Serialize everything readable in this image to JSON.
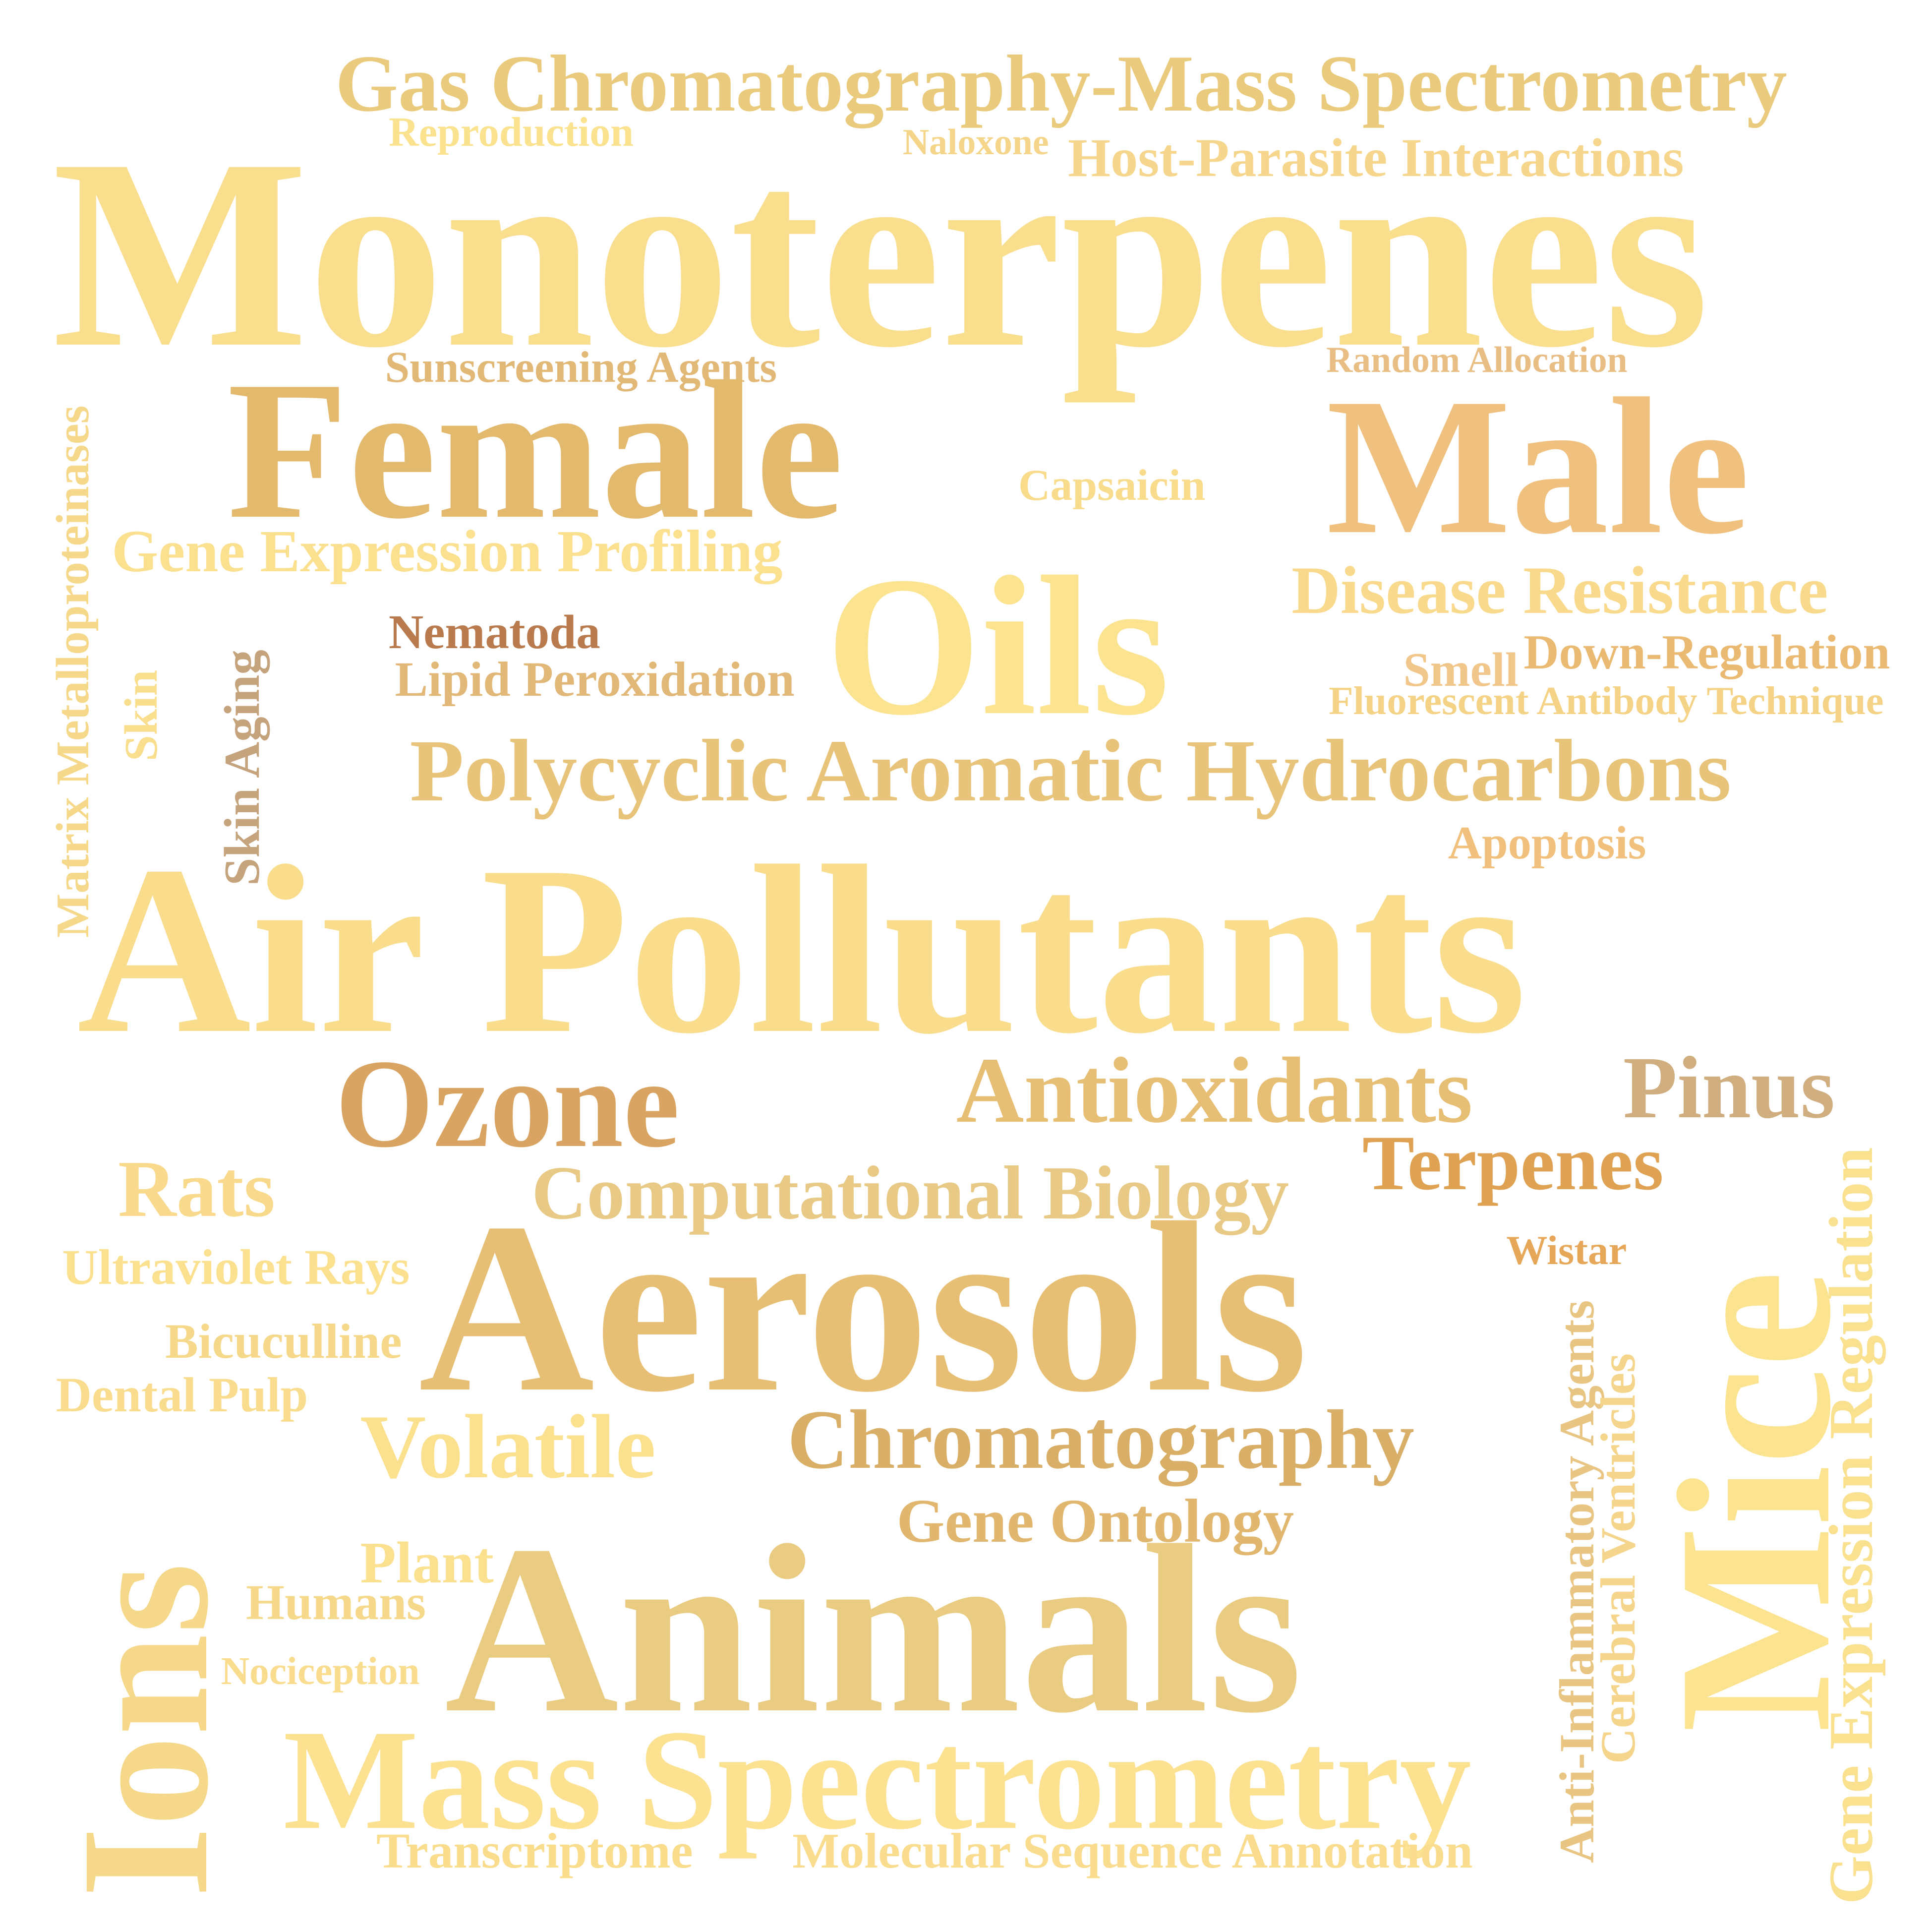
{
  "word_cloud": {
    "words": [
      {
        "text": "Gas Chromatography-Mass Spectrometry",
        "color": "#EACB7D"
      },
      {
        "text": "Reproduction",
        "color": "#FBE28E"
      },
      {
        "text": "Naloxone",
        "color": "#F4D58A"
      },
      {
        "text": "Host-Parasite Interactions",
        "color": "#F6D68C"
      },
      {
        "text": "Monoterpenes",
        "color": "#F9DE8D"
      },
      {
        "text": "Sunscreening Agents",
        "color": "#E2B877"
      },
      {
        "text": "Random Allocation",
        "color": "#E8BE84"
      },
      {
        "text": "Female",
        "color": "#E3B96E"
      },
      {
        "text": "Male",
        "color": "#F0C07F"
      },
      {
        "text": "Capsaicin",
        "color": "#F9DB8C"
      },
      {
        "text": "Gene Expression Profiling",
        "color": "#FBE08F"
      },
      {
        "text": "Matrix Metalloproteinases",
        "color": "#F6D88B"
      },
      {
        "text": "Oils",
        "color": "#FCE38F"
      },
      {
        "text": "Disease Resistance",
        "color": "#F9DA8C"
      },
      {
        "text": "Nematoda",
        "color": "#B97A4E"
      },
      {
        "text": "Lipid Peroxidation",
        "color": "#E2B878"
      },
      {
        "text": "Skin",
        "color": "#F9DE8E"
      },
      {
        "text": "Skin Aging",
        "color": "#C4A37D"
      },
      {
        "text": "Smell",
        "color": "#F1C68A"
      },
      {
        "text": "Down-Regulation",
        "color": "#EAB972"
      },
      {
        "text": "Fluorescent Antibody Technique",
        "color": "#F5D386"
      },
      {
        "text": "Polycyclic Aromatic Hydrocarbons",
        "color": "#E8C47B"
      },
      {
        "text": "Apoptosis",
        "color": "#F0C07C"
      },
      {
        "text": "Air Pollutants",
        "color": "#F9DD8C"
      },
      {
        "text": "Ozone",
        "color": "#D9A462"
      },
      {
        "text": "Antioxidants",
        "color": "#E6BE74"
      },
      {
        "text": "Pinus",
        "color": "#D0AE80"
      },
      {
        "text": "Rats",
        "color": "#F9DA8D"
      },
      {
        "text": "Computational Biology",
        "color": "#E8C985"
      },
      {
        "text": "Terpenes",
        "color": "#DFA253"
      },
      {
        "text": "Ultraviolet Rays",
        "color": "#FBE18F"
      },
      {
        "text": "Aerosols",
        "color": "#E6BF74"
      },
      {
        "text": "Wistar",
        "color": "#E6A759"
      },
      {
        "text": "Bicuculline",
        "color": "#F6D88A"
      },
      {
        "text": "Dental Pulp",
        "color": "#F9DC8D"
      },
      {
        "text": "Mice",
        "color": "#FBE390"
      },
      {
        "text": "Gene Expression Regulation",
        "color": "#FAE190"
      },
      {
        "text": "Anti-Inflammatory Agents",
        "color": "#E8C583"
      },
      {
        "text": "Cerebral Ventricles",
        "color": "#F4D58B"
      },
      {
        "text": "Volatile",
        "color": "#FBE08E"
      },
      {
        "text": "Chromatography",
        "color": "#D9AF68"
      },
      {
        "text": "Ions",
        "color": "#F6D88A"
      },
      {
        "text": "Gene Ontology",
        "color": "#E1B76F"
      },
      {
        "text": "Plant",
        "color": "#FAE08F"
      },
      {
        "text": "Humans",
        "color": "#F6D88A"
      },
      {
        "text": "Animals",
        "color": "#EACB82"
      },
      {
        "text": "Nociception",
        "color": "#F9DC8D"
      },
      {
        "text": "Mass Spectrometry",
        "color": "#FBE190"
      },
      {
        "text": "Transcriptome",
        "color": "#F9DD8D"
      },
      {
        "text": "Molecular Sequence Annotation",
        "color": "#F9DC8D"
      }
    ]
  }
}
